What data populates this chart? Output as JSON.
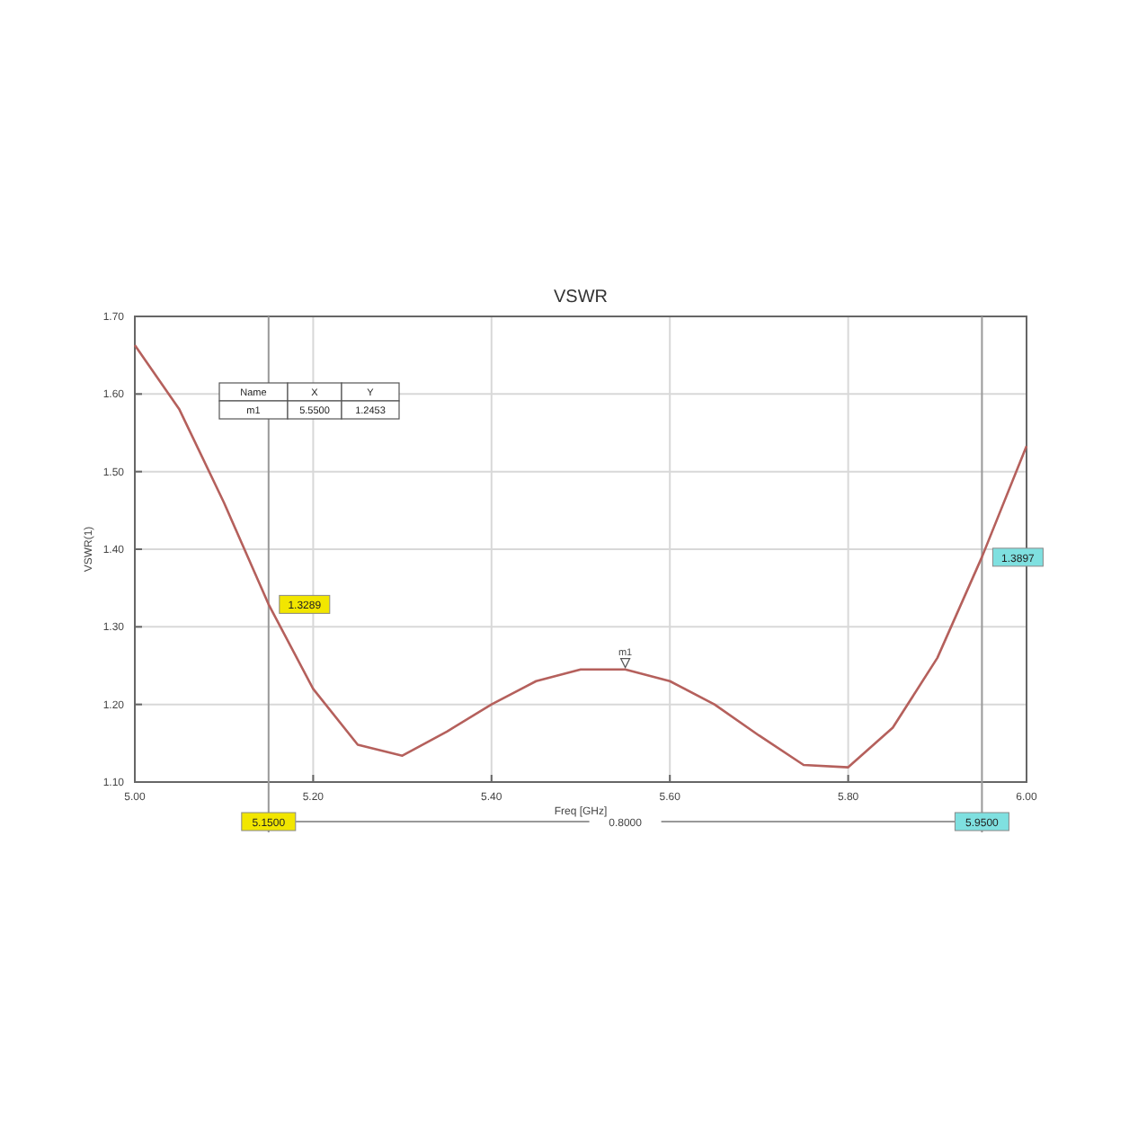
{
  "chart_data": {
    "type": "line",
    "title": "VSWR",
    "xlabel": "Freq [GHz]",
    "ylabel": "VSWR(1)",
    "x": [
      5.0,
      5.05,
      5.1,
      5.15,
      5.2,
      5.25,
      5.3,
      5.35,
      5.4,
      5.45,
      5.5,
      5.55,
      5.6,
      5.65,
      5.7,
      5.75,
      5.8,
      5.85,
      5.9,
      5.95,
      6.0
    ],
    "series": [
      {
        "color": "#b5605c",
        "values": [
          1.663,
          1.58,
          1.46,
          1.329,
          1.22,
          1.148,
          1.134,
          1.165,
          1.2,
          1.23,
          1.245,
          1.245,
          1.23,
          1.2,
          1.16,
          1.122,
          1.119,
          1.17,
          1.26,
          1.39,
          1.533
        ]
      }
    ],
    "xlim": [
      5.0,
      6.0
    ],
    "xticks": [
      {
        "value": 5.0,
        "label": "5.00"
      },
      {
        "value": 5.2,
        "label": "5.20"
      },
      {
        "value": 5.4,
        "label": "5.40"
      },
      {
        "value": 5.6,
        "label": "5.60"
      },
      {
        "value": 5.8,
        "label": "5.80"
      },
      {
        "value": 6.0,
        "label": "6.00"
      }
    ],
    "ylim": [
      1.1,
      1.7
    ],
    "yticks": [
      {
        "value": 1.1,
        "label": "1.10"
      },
      {
        "value": 1.2,
        "label": "1.20"
      },
      {
        "value": 1.3,
        "label": "1.30"
      },
      {
        "value": 1.4,
        "label": "1.40"
      },
      {
        "value": 1.5,
        "label": "1.50"
      },
      {
        "value": 1.6,
        "label": "1.60"
      },
      {
        "value": 1.7,
        "label": "1.70"
      }
    ],
    "grid": true,
    "marker": "none",
    "line_style": "solid",
    "ref_lines": [
      {
        "axis": "x",
        "value": 5.15,
        "label": "5.1500",
        "color": "#999999"
      },
      {
        "axis": "x",
        "value": 5.95,
        "label": "5.9500",
        "color": "#999999"
      }
    ],
    "annotations": [
      {
        "text": "m1",
        "x": 5.55,
        "y": 1.2453
      },
      {
        "text": "1.3289",
        "x": 5.15,
        "y": 1.3289
      },
      {
        "text": "1.3897",
        "x": 5.95,
        "y": 1.3897
      },
      "Name",
      "X",
      "Y",
      "m1",
      "5.5500",
      "1.2453",
      "0.8000"
    ]
  }
}
